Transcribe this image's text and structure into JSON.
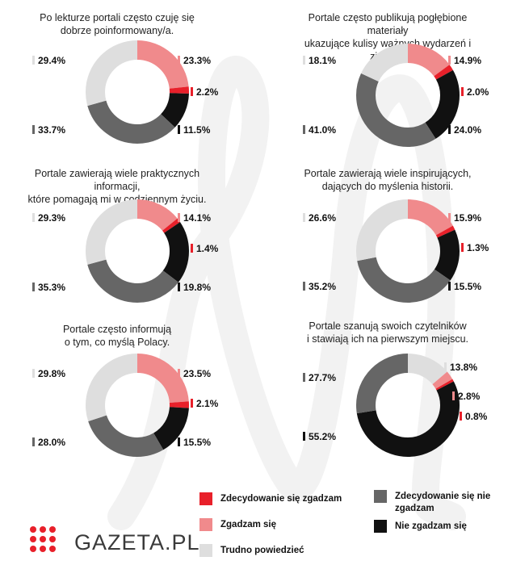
{
  "colors": {
    "strongly_agree": "#e8202a",
    "agree": "#f08a8c",
    "neutral": "#dedede",
    "strongly_disagree": "#666666",
    "disagree": "#111111"
  },
  "chart_data": [
    {
      "type": "pie",
      "title": "Po lekturze portali często czuję się\ndobrze poinformowany/a.",
      "slices": [
        {
          "category": "agree",
          "value": 23.3,
          "label": "23.3%"
        },
        {
          "category": "strongly_agree",
          "value": 2.2,
          "label": "2.2%"
        },
        {
          "category": "disagree",
          "value": 11.5,
          "label": "11.5%"
        },
        {
          "category": "strongly_disagree",
          "value": 33.7,
          "label": "33.7%"
        },
        {
          "category": "neutral",
          "value": 29.4,
          "label": "29.4%"
        }
      ]
    },
    {
      "type": "pie",
      "title": "Portale często publikują pogłębione materiały\nukazujące kulisy ważnych wydarzeń i zjawisk.",
      "slices": [
        {
          "category": "agree",
          "value": 14.9,
          "label": "14.9%"
        },
        {
          "category": "strongly_agree",
          "value": 2.0,
          "label": "2.0%"
        },
        {
          "category": "disagree",
          "value": 24.0,
          "label": "24.0%"
        },
        {
          "category": "strongly_disagree",
          "value": 41.0,
          "label": "41.0%"
        },
        {
          "category": "neutral",
          "value": 18.1,
          "label": "18.1%"
        }
      ]
    },
    {
      "type": "pie",
      "title": "Portale zawierają wiele praktycznych informacji,\nktóre pomagają mi w codziennym życiu.",
      "slices": [
        {
          "category": "agree",
          "value": 14.1,
          "label": "14.1%"
        },
        {
          "category": "strongly_agree",
          "value": 1.4,
          "label": "1.4%"
        },
        {
          "category": "disagree",
          "value": 19.8,
          "label": "19.8%"
        },
        {
          "category": "strongly_disagree",
          "value": 35.3,
          "label": "35.3%"
        },
        {
          "category": "neutral",
          "value": 29.3,
          "label": "29.3%"
        }
      ]
    },
    {
      "type": "pie",
      "title": "Portale zawierają wiele inspirujących,\ndających do myślenia historii.",
      "slices": [
        {
          "category": "agree",
          "value": 15.9,
          "label": "15.9%"
        },
        {
          "category": "strongly_agree",
          "value": 1.3,
          "label": "1.3%"
        },
        {
          "category": "disagree",
          "value": 15.5,
          "label": "15.5%"
        },
        {
          "category": "strongly_disagree",
          "value": 35.2,
          "label": "35.2%"
        },
        {
          "category": "neutral",
          "value": 26.6,
          "label": "26.6%"
        }
      ]
    },
    {
      "type": "pie",
      "title": "Portale często informują\no tym, co myślą Polacy.",
      "slices": [
        {
          "category": "agree",
          "value": 23.5,
          "label": "23.5%"
        },
        {
          "category": "strongly_agree",
          "value": 2.1,
          "label": "2.1%"
        },
        {
          "category": "disagree",
          "value": 15.5,
          "label": "15.5%"
        },
        {
          "category": "strongly_disagree",
          "value": 28.0,
          "label": "28.0%"
        },
        {
          "category": "neutral",
          "value": 29.8,
          "label": "29.8%"
        }
      ]
    },
    {
      "type": "pie",
      "title": "Portale szanują swoich czytelników\ni stawiają ich na pierwszym miejscu.",
      "slices": [
        {
          "category": "neutral",
          "value": 13.8,
          "label": "13.8%"
        },
        {
          "category": "agree",
          "value": 2.8,
          "label": "2.8%"
        },
        {
          "category": "strongly_agree",
          "value": 0.8,
          "label": "0.8%"
        },
        {
          "category": "disagree",
          "value": 55.2,
          "label": "55.2%"
        },
        {
          "category": "strongly_disagree",
          "value": 27.7,
          "label": "27.7%"
        }
      ]
    }
  ],
  "legend": {
    "strongly_agree": "Zdecydowanie się zgadzam",
    "agree": "Zgadzam się",
    "neutral": "Trudno powiedzieć",
    "strongly_disagree": "Zdecydowanie się nie zgadzam",
    "disagree": "Nie zgadzam się"
  },
  "brand": {
    "name": "GAZETA.PL",
    "icon": "gazeta-dots-logo-icon"
  }
}
